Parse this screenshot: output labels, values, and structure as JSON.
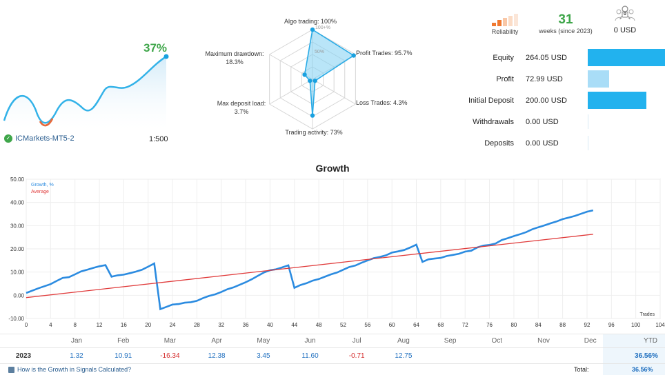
{
  "mini_chart": {
    "percent": "37%",
    "broker": "ICMarkets-MT5-2",
    "leverage": "1:500"
  },
  "radar": {
    "scale_labels": [
      "100+%",
      "50%"
    ],
    "axes": [
      {
        "label": "Algo trading: 100%",
        "value": 100
      },
      {
        "label": "Profit Trades: 95.7%",
        "value": 95.7
      },
      {
        "label": "Loss Trades: 4.3%",
        "value": 4.3
      },
      {
        "label": "Trading activity: 73%",
        "value": 73
      },
      {
        "label": "Max deposit load:\n3.7%",
        "value": 3.7
      },
      {
        "label": "Maximum drawdown:\n18.3%",
        "value": 18.3
      }
    ]
  },
  "summary": {
    "reliability_label": "Reliability",
    "weeks_value": "31",
    "weeks_label": "weeks (since 2023)",
    "subscribers_count": "0",
    "subscribers_value": "0 USD"
  },
  "stats": [
    {
      "key": "Equity",
      "value": "264.05 USD",
      "amount": 264.05,
      "color": "#22b2ee"
    },
    {
      "key": "Profit",
      "value": "72.99 USD",
      "amount": 72.99,
      "color": "#a9ddf7"
    },
    {
      "key": "Initial Deposit",
      "value": "200.00 USD",
      "amount": 200.0,
      "color": "#22b2ee"
    },
    {
      "key": "Withdrawals",
      "value": "0.00 USD",
      "amount": 0,
      "color": "#22b2ee"
    },
    {
      "key": "Deposits",
      "value": "0.00 USD",
      "amount": 0,
      "color": "#22b2ee"
    }
  ],
  "chart_data": {
    "type": "line",
    "title": "Growth",
    "xlabel": "Trades",
    "ylabel": "",
    "xlim": [
      0,
      104
    ],
    "ylim": [
      -10,
      50
    ],
    "x_ticks": [
      0,
      4,
      8,
      12,
      16,
      20,
      24,
      28,
      32,
      36,
      40,
      44,
      48,
      52,
      56,
      60,
      64,
      68,
      72,
      76,
      80,
      84,
      88,
      92,
      96,
      100,
      104
    ],
    "y_ticks": [
      "-10.00",
      "0.00",
      "10.00",
      "20.00",
      "30.00",
      "40.00",
      "50.00"
    ],
    "grid": true,
    "legend_position": "top-left",
    "series": [
      {
        "name": "Growth, %",
        "color": "#2b8be0",
        "x": [
          0,
          2,
          4,
          5,
          6,
          7,
          8,
          9,
          10,
          11,
          12,
          13,
          14,
          15,
          16,
          17,
          18,
          19,
          20,
          21,
          22,
          23,
          24,
          25,
          26,
          27,
          28,
          29,
          30,
          31,
          32,
          33,
          34,
          35,
          36,
          37,
          38,
          39,
          40,
          41,
          42,
          43,
          44,
          45,
          46,
          47,
          48,
          49,
          50,
          51,
          52,
          53,
          54,
          55,
          56,
          57,
          58,
          59,
          60,
          61,
          62,
          63,
          64,
          65,
          66,
          67,
          68,
          69,
          70,
          71,
          72,
          73,
          74,
          75,
          76,
          77,
          78,
          79,
          80,
          81,
          82,
          83,
          84,
          85,
          86,
          87,
          88,
          89,
          90,
          91,
          92,
          93
        ],
        "values": [
          1.0,
          3.0,
          4.8,
          6.2,
          7.5,
          7.8,
          9.0,
          10.3,
          11.0,
          11.8,
          12.5,
          13.0,
          8.0,
          8.6,
          8.9,
          9.5,
          10.2,
          11.0,
          12.3,
          13.7,
          -6.0,
          -5.0,
          -4.0,
          -3.8,
          -3.2,
          -3.0,
          -2.4,
          -1.2,
          -0.3,
          0.4,
          1.4,
          2.6,
          3.4,
          4.5,
          5.6,
          6.9,
          8.4,
          9.8,
          10.8,
          11.2,
          12.0,
          12.9,
          3.2,
          4.4,
          5.2,
          6.3,
          7.0,
          8.0,
          9.0,
          9.8,
          11.0,
          12.2,
          12.8,
          14.0,
          15.0,
          16.0,
          16.5,
          17.2,
          18.4,
          18.9,
          19.5,
          20.6,
          21.8,
          14.4,
          15.5,
          15.8,
          16.1,
          16.9,
          17.4,
          17.9,
          18.8,
          19.2,
          20.6,
          21.4,
          21.7,
          22.3,
          23.8,
          24.6,
          25.5,
          26.3,
          27.2,
          28.4,
          29.3,
          30.1,
          31.0,
          31.8,
          32.8,
          33.5,
          34.2,
          35.1,
          36.0,
          36.6
        ]
      },
      {
        "name": "Average",
        "color": "#e03b3b",
        "x": [
          0,
          93
        ],
        "values": [
          -1.0,
          26.3
        ]
      }
    ]
  },
  "growth_table": {
    "months": [
      "Jan",
      "Feb",
      "Mar",
      "Apr",
      "May",
      "Jun",
      "Jul",
      "Aug",
      "Sep",
      "Oct",
      "Nov",
      "Dec"
    ],
    "ytd_label": "YTD",
    "year": "2023",
    "values": [
      "1.32",
      "10.91",
      "-16.34",
      "12.38",
      "3.45",
      "11.60",
      "-0.71",
      "12.75",
      "",
      "",
      "",
      ""
    ],
    "ytd_value": "36.56%",
    "total_label": "Total:",
    "total_value": "36.56%",
    "footer_link": "How is the Growth in Signals Calculated?"
  }
}
